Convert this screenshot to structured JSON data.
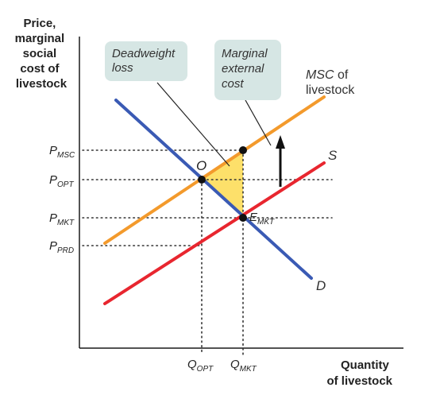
{
  "y_axis_label": [
    "Price,",
    "marginal",
    "social",
    "cost of",
    "livestock"
  ],
  "x_axis_label": [
    "Quantity",
    "of livestock"
  ],
  "price_ticks": {
    "msc": {
      "base": "P",
      "sub": "MSC"
    },
    "opt": {
      "base": "P",
      "sub": "OPT"
    },
    "mkt": {
      "base": "P",
      "sub": "MKT"
    },
    "prd": {
      "base": "P",
      "sub": "PRD"
    }
  },
  "quantity_ticks": {
    "opt": {
      "base": "Q",
      "sub": "OPT"
    },
    "mkt": {
      "base": "Q",
      "sub": "MKT"
    }
  },
  "callouts": {
    "deadweight": [
      "Deadweight",
      "loss"
    ],
    "external": [
      "Marginal",
      "external",
      "cost"
    ]
  },
  "curve_labels": {
    "msc_italic": "MSC",
    "msc_rest": " of",
    "msc_line2": "livestock",
    "supply": "S",
    "demand": "D"
  },
  "point_labels": {
    "optimum": "O",
    "market_base": "E",
    "market_sub": "MKT"
  },
  "colors": {
    "msc": "#f39a2c",
    "supply": "#e8262f",
    "demand": "#3a5ab4",
    "deadweight_fill": "#fde06a",
    "callout_bg": "#d6e6e4",
    "axis": "#1a1a1a"
  }
}
